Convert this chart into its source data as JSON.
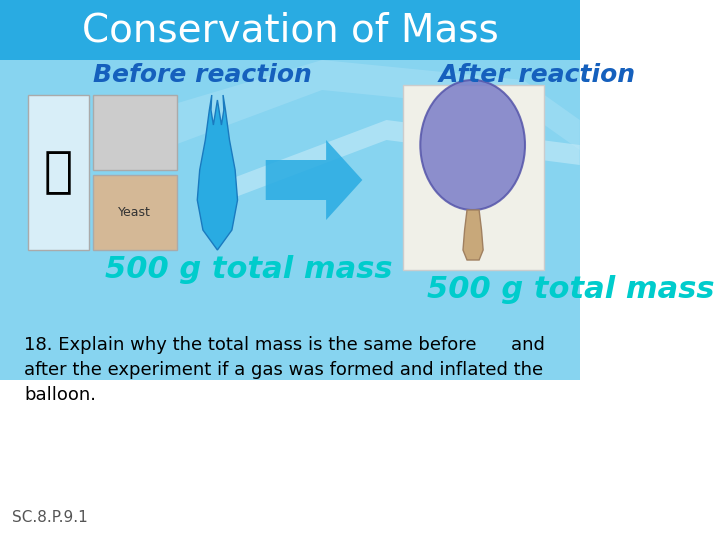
{
  "title": "Conservation of Mass",
  "title_color": "#ffffff",
  "title_fontsize": 28,
  "title_bg_color": "#29abe2",
  "slide_bg_color": "#87d4f0",
  "slide_bg_bottom": "#ffffff",
  "before_label": "Before reaction",
  "after_label": "After reaction",
  "label_color": "#1560bd",
  "label_fontsize": 18,
  "mass_label": "500 g total mass",
  "mass_color": "#00cccc",
  "mass_fontsize": 22,
  "arrow_color": "#29abe2",
  "text_line1": "18. Explain why the total mass is the same before      and",
  "text_line2": "after the experiment if a gas was formed and inflated the",
  "text_line3": "balloon.",
  "text_color": "#000000",
  "text_fontsize": 13,
  "footnote": "SC.8.P.9.1",
  "footnote_fontsize": 11,
  "footnote_color": "#555555",
  "white_panel_color": "#e8f6fc"
}
